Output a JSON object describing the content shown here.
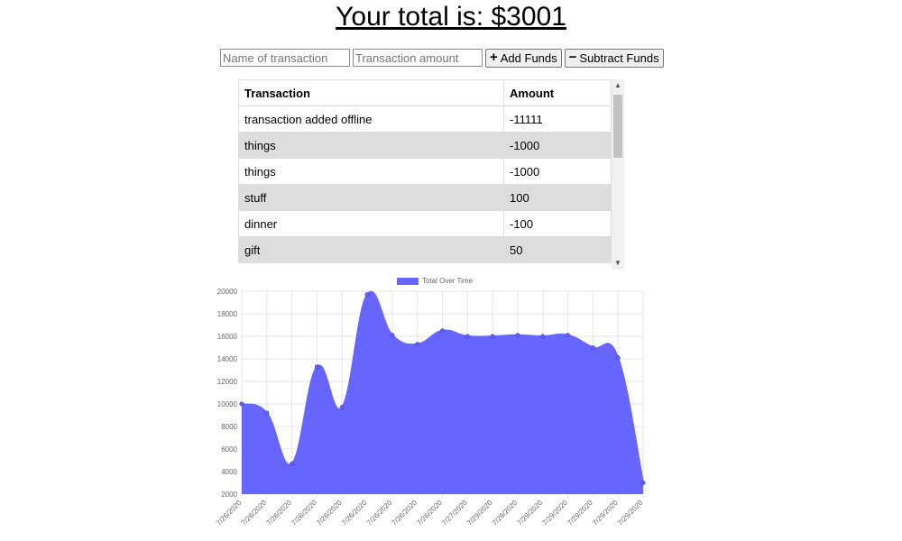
{
  "header": {
    "total_label": "Your total is: $3001"
  },
  "form": {
    "name_placeholder": "Name of transaction",
    "amount_placeholder": "Transaction amount",
    "add_label": "Add Funds",
    "subtract_label": "Subtract Funds",
    "add_icon": "plus-icon",
    "subtract_icon": "minus-icon"
  },
  "table": {
    "headers": [
      "Transaction",
      "Amount"
    ],
    "rows": [
      [
        "transaction added offline",
        "-11111"
      ],
      [
        "things",
        "-1000"
      ],
      [
        "things",
        "-1000"
      ],
      [
        "stuff",
        "100"
      ],
      [
        "dinner",
        "-100"
      ],
      [
        "gift",
        "50"
      ]
    ]
  },
  "chart_data": {
    "type": "area",
    "legend": "Total Over Time",
    "legend_position": "top",
    "fill_color": "#6666ff",
    "grid": true,
    "ylim": [
      2000,
      20000
    ],
    "yticks": [
      2000,
      4000,
      6000,
      8000,
      10000,
      12000,
      14000,
      16000,
      18000,
      20000
    ],
    "x": [
      "7/26/2020",
      "7/26/2020",
      "7/26/2020",
      "7/26/2020",
      "7/26/2020",
      "7/26/2020",
      "7/26/2020",
      "7/26/2020",
      "7/26/2020",
      "7/27/2020",
      "7/29/2020",
      "7/29/2020",
      "7/29/2020",
      "7/29/2020",
      "7/29/2020",
      "7/29/2020",
      "7/29/2020"
    ],
    "values": [
      10000,
      9200,
      4700,
      13300,
      9700,
      19700,
      16100,
      15300,
      16500,
      16000,
      16000,
      16100,
      16000,
      16100,
      15000,
      14100,
      3001
    ]
  }
}
